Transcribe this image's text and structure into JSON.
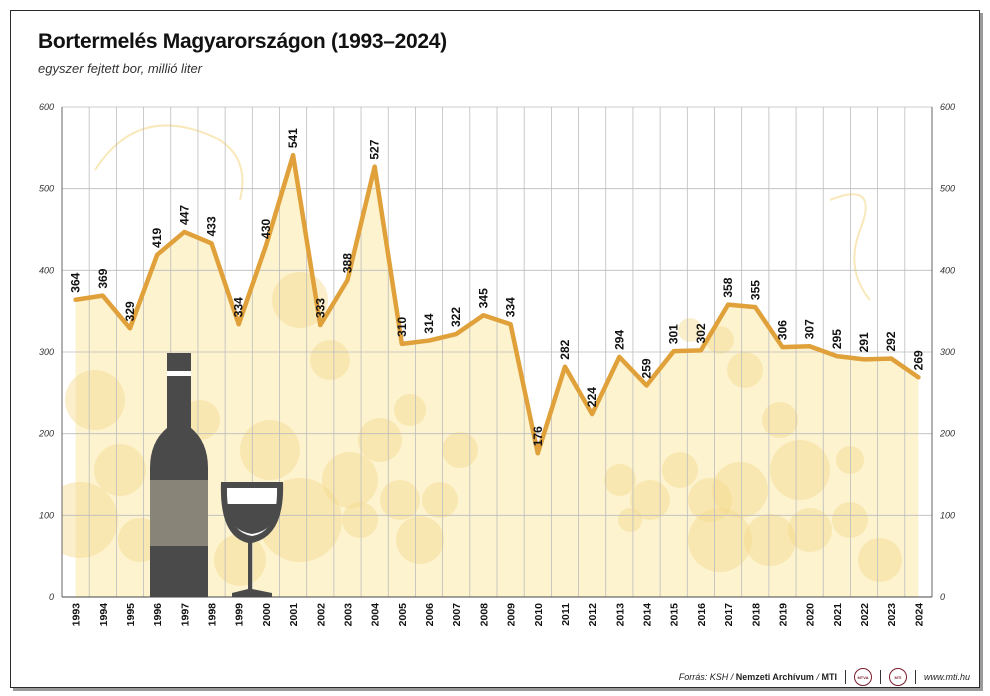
{
  "header": {
    "title": "Bortermelés Magyarországon (1993–2024)",
    "subtitle": "egyszer fejtett bor, millió liter"
  },
  "footer": {
    "source_label": "Forrás: KSH /",
    "source_archive": "Nemzeti Archívum",
    "source_sep": "/",
    "source_mti": "MTI",
    "logo1": "MTVA",
    "logo2": "MTI",
    "website": "www.mti.hu"
  },
  "colors": {
    "line": "#e0a03a",
    "background_fill": "#fdf3cf",
    "decor": "#f3d98c",
    "bottle": "#4a4a4a",
    "grid": "#bcbcbc"
  },
  "chart_data": {
    "type": "line",
    "title": "Bortermelés Magyarországon (1993–2024)",
    "subtitle": "egyszer fejtett bor, millió liter",
    "x": [
      "1993",
      "1994",
      "1995",
      "1996",
      "1997",
      "1998",
      "1999",
      "2000",
      "2001",
      "2002",
      "2003",
      "2004",
      "2005",
      "2006",
      "2007",
      "2008",
      "2009",
      "2010",
      "2011",
      "2012",
      "2013",
      "2014",
      "2015",
      "2016",
      "2017",
      "2018",
      "2019",
      "2020",
      "2021",
      "2022",
      "2023",
      "2024"
    ],
    "values": [
      364,
      369,
      329,
      419,
      447,
      433,
      334,
      430,
      541,
      333,
      388,
      527,
      310,
      314,
      322,
      345,
      334,
      176,
      282,
      224,
      294,
      259,
      301,
      302,
      358,
      355,
      306,
      307,
      295,
      291,
      292,
      269
    ],
    "ylim": [
      0,
      600
    ],
    "yticks": [
      0,
      100,
      200,
      300,
      400,
      500,
      600
    ],
    "grid": true,
    "axis_left_and_right": true,
    "data_labels": true
  }
}
